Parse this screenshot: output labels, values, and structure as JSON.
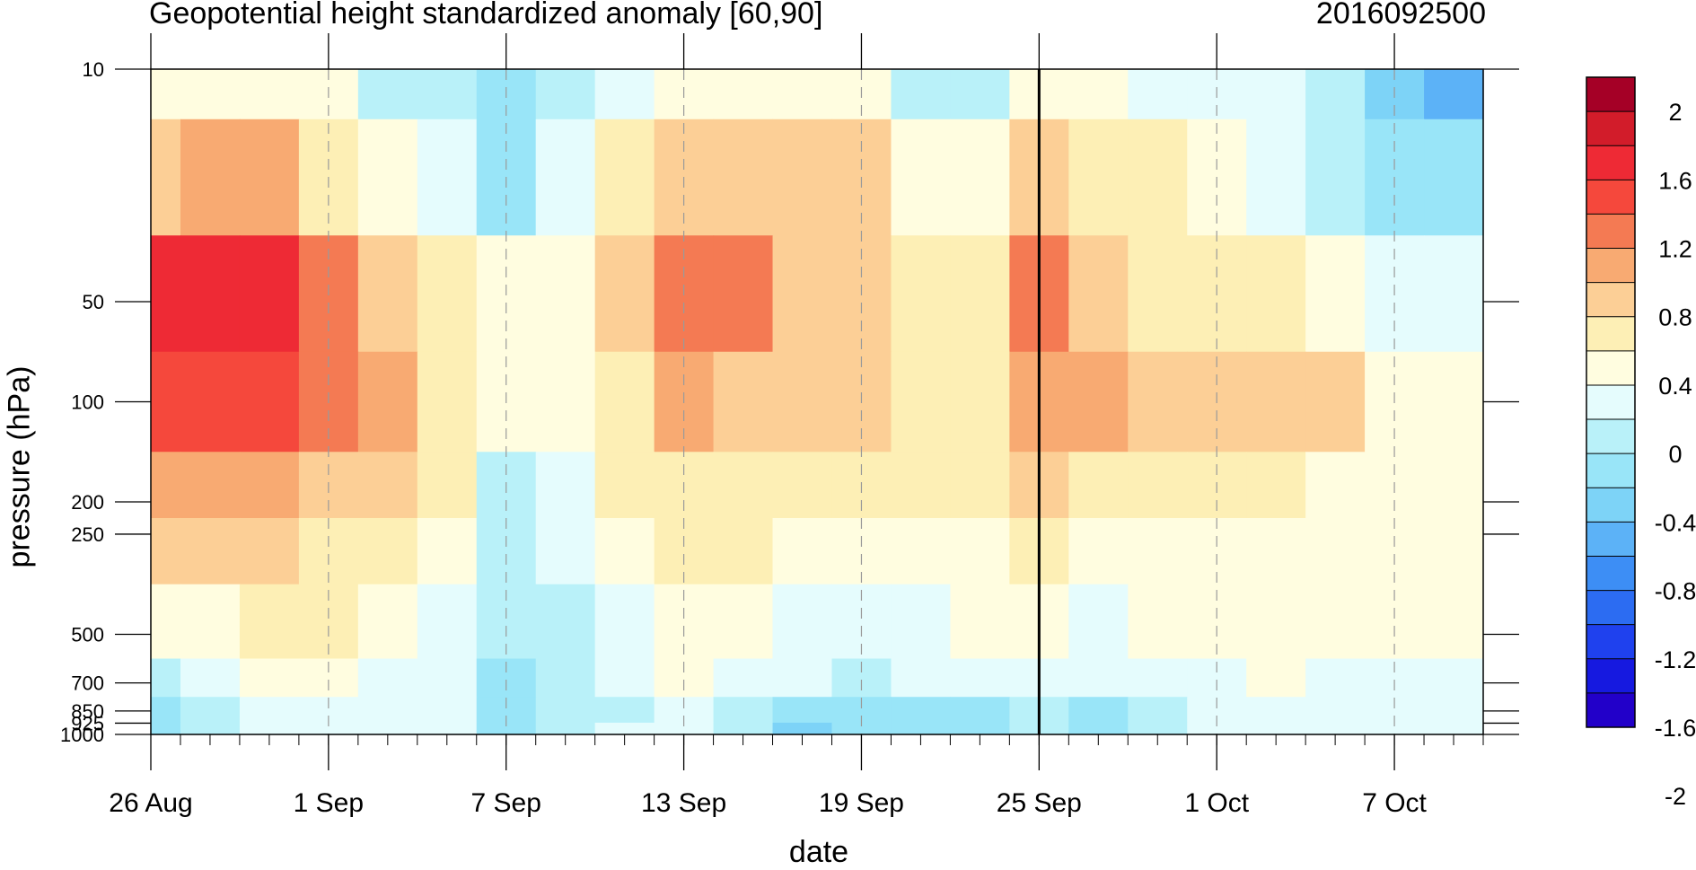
{
  "chart_data": {
    "type": "heatmap",
    "title": "Geopotential height standardized anomaly [60,90]",
    "date_label": "2016092500",
    "xlabel": "date",
    "ylabel": "pressure (hPa)",
    "y_scale": "log",
    "y_reversed": true,
    "ylim": [
      1000,
      10
    ],
    "xlim": [
      "2016-08-26",
      "2016-10-10"
    ],
    "x_ticks": [
      "26 Aug",
      "1 Sep",
      "7 Sep",
      "13 Sep",
      "19 Sep",
      "25 Sep",
      "1 Oct",
      "7 Oct"
    ],
    "x_tick_dates": [
      "2016-08-26",
      "2016-09-01",
      "2016-09-07",
      "2016-09-13",
      "2016-09-19",
      "2016-09-25",
      "2016-10-01",
      "2016-10-07"
    ],
    "y_ticks": [
      {
        "value": 10,
        "label": "10"
      },
      {
        "value": 50,
        "label": "50"
      },
      {
        "value": 100,
        "label": "100"
      },
      {
        "value": 200,
        "label": "200"
      },
      {
        "value": 250,
        "label": "250"
      },
      {
        "value": 500,
        "label": "500"
      },
      {
        "value": 700,
        "label": "700"
      },
      {
        "value": 850,
        "label": "850"
      },
      {
        "value": 925,
        "label": "925"
      },
      {
        "value": 1000,
        "label": "1000"
      }
    ],
    "current_date_marker": "2016-09-25",
    "dashed_gridlines": "x",
    "colorbar": {
      "labels": [
        "2",
        "1.6",
        "1.2",
        "0.8",
        "0.4",
        "0",
        "-0.4",
        "-0.8",
        "-1.2",
        "-1.6",
        "-2"
      ],
      "colors": [
        "#a50026",
        "#d21c2a",
        "#ee2a35",
        "#f5483c",
        "#f47a53",
        "#f8aa72",
        "#fccf96",
        "#fdefb5",
        "#fffde0",
        "#e5fcfd",
        "#b9f1f9",
        "#99e5f8",
        "#7dd3f7",
        "#5cb2f7",
        "#3d8ef5",
        "#2c6cf2",
        "#1f41ee",
        "#1619e0",
        "#2200c9"
      ],
      "colors_order": "top-to-bottom"
    },
    "data_dates": [
      "2016-08-26",
      "2016-08-28",
      "2016-08-30",
      "2016-09-01",
      "2016-09-03",
      "2016-09-05",
      "2016-09-07",
      "2016-09-09",
      "2016-09-11",
      "2016-09-13",
      "2016-09-15",
      "2016-09-17",
      "2016-09-19",
      "2016-09-21",
      "2016-09-23",
      "2016-09-25",
      "2016-09-27",
      "2016-09-29",
      "2016-10-01",
      "2016-10-03",
      "2016-10-05",
      "2016-10-07",
      "2016-10-09"
    ],
    "levels": [
      10,
      20,
      50,
      100,
      200,
      250,
      500,
      700,
      850,
      1000
    ],
    "values": [
      [
        0.5,
        0.6,
        0.6,
        0.5,
        0.2,
        0.2,
        -0.1,
        0.2,
        0.4,
        0.6,
        0.6,
        0.5,
        0.6,
        0.2,
        0.2,
        0.5,
        0.5,
        0.4,
        0.3,
        0.3,
        0.1,
        -0.3,
        -0.4
      ],
      [
        0.9,
        1.1,
        1.1,
        0.8,
        0.6,
        0.4,
        0.0,
        0.4,
        0.8,
        0.9,
        0.9,
        0.9,
        0.9,
        0.5,
        0.5,
        1.0,
        0.8,
        0.7,
        0.5,
        0.4,
        0.2,
        0.0,
        -0.1
      ],
      [
        1.7,
        1.7,
        1.7,
        1.4,
        1.0,
        0.8,
        0.5,
        0.5,
        1.0,
        1.3,
        1.3,
        1.0,
        0.9,
        0.7,
        0.8,
        1.3,
        1.0,
        0.8,
        0.8,
        0.7,
        0.5,
        0.3,
        0.3
      ],
      [
        1.5,
        1.6,
        1.6,
        1.3,
        1.1,
        0.8,
        0.5,
        0.5,
        0.8,
        1.2,
        0.9,
        0.9,
        0.9,
        0.7,
        0.8,
        1.2,
        1.2,
        0.9,
        0.9,
        0.9,
        0.9,
        0.6,
        0.5
      ],
      [
        1.2,
        1.2,
        1.1,
        1.0,
        0.9,
        0.7,
        0.2,
        0.4,
        0.7,
        0.8,
        0.8,
        0.7,
        0.7,
        0.7,
        0.7,
        0.9,
        0.7,
        0.7,
        0.7,
        0.7,
        0.6,
        0.5,
        0.5
      ],
      [
        1.0,
        1.0,
        0.9,
        0.8,
        0.7,
        0.6,
        0.2,
        0.3,
        0.6,
        0.7,
        0.7,
        0.6,
        0.6,
        0.6,
        0.6,
        0.8,
        0.6,
        0.6,
        0.6,
        0.6,
        0.5,
        0.5,
        0.5
      ],
      [
        0.5,
        0.6,
        0.7,
        0.7,
        0.5,
        0.4,
        0.1,
        0.2,
        0.4,
        0.6,
        0.5,
        0.4,
        0.4,
        0.4,
        0.5,
        0.6,
        0.4,
        0.5,
        0.5,
        0.6,
        0.5,
        0.5,
        0.5
      ],
      [
        0.2,
        0.4,
        0.5,
        0.5,
        0.4,
        0.3,
        0.0,
        0.1,
        0.3,
        0.5,
        0.4,
        0.3,
        0.2,
        0.3,
        0.3,
        0.4,
        0.3,
        0.3,
        0.4,
        0.5,
        0.4,
        0.4,
        0.4
      ],
      [
        -0.1,
        0.2,
        0.4,
        0.4,
        0.4,
        0.3,
        -0.1,
        0.1,
        0.2,
        0.4,
        0.2,
        -0.1,
        -0.1,
        0.0,
        0.0,
        0.2,
        0.0,
        0.2,
        0.4,
        0.4,
        0.4,
        0.4,
        0.4
      ],
      [
        -0.1,
        0.2,
        0.4,
        0.4,
        0.4,
        0.3,
        -0.1,
        0.1,
        0.3,
        0.4,
        0.1,
        -0.2,
        -0.1,
        -0.1,
        -0.1,
        0.1,
        -0.1,
        0.2,
        0.4,
        0.4,
        0.4,
        0.4,
        0.4
      ]
    ]
  }
}
